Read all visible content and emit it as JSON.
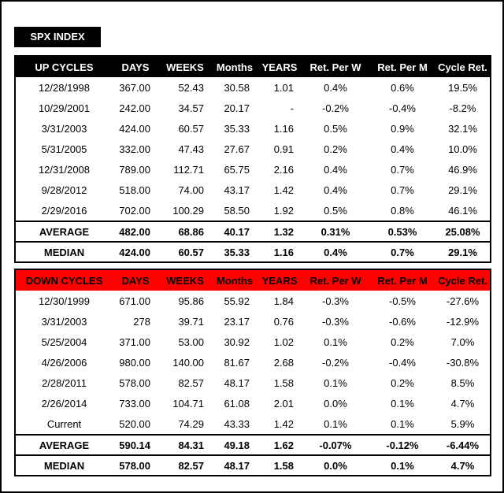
{
  "title": "SPX INDEX",
  "up": {
    "headers": [
      "UP CYCLES",
      "DAYS",
      "WEEKS",
      "Months",
      "YEARS",
      "Ret. Per W",
      "Ret. Per M",
      "Cycle Ret."
    ],
    "rows": [
      [
        "12/28/1998",
        "367.00",
        "52.43",
        "30.58",
        "1.01",
        "0.4%",
        "0.6%",
        "19.5%"
      ],
      [
        "10/29/2001",
        "242.00",
        "34.57",
        "20.17",
        "-",
        "-0.2%",
        "-0.4%",
        "-8.2%"
      ],
      [
        "3/31/2003",
        "424.00",
        "60.57",
        "35.33",
        "1.16",
        "0.5%",
        "0.9%",
        "32.1%"
      ],
      [
        "5/31/2005",
        "332.00",
        "47.43",
        "27.67",
        "0.91",
        "0.2%",
        "0.4%",
        "10.0%"
      ],
      [
        "12/31/2008",
        "789.00",
        "112.71",
        "65.75",
        "2.16",
        "0.4%",
        "0.7%",
        "46.9%"
      ],
      [
        "9/28/2012",
        "518.00",
        "74.00",
        "43.17",
        "1.42",
        "0.4%",
        "0.7%",
        "29.1%"
      ],
      [
        "2/29/2016",
        "702.00",
        "100.29",
        "58.50",
        "1.92",
        "0.5%",
        "0.8%",
        "46.1%"
      ]
    ],
    "average": [
      "AVERAGE",
      "482.00",
      "68.86",
      "40.17",
      "1.32",
      "0.31%",
      "0.53%",
      "25.08%"
    ],
    "median": [
      "MEDIAN",
      "424.00",
      "60.57",
      "35.33",
      "1.16",
      "0.4%",
      "0.7%",
      "29.1%"
    ]
  },
  "down": {
    "headers": [
      "DOWN CYCLES",
      "DAYS",
      "WEEKS",
      "Months",
      "YEARS",
      "Ret. Per W",
      "Ret. Per M",
      "Cycle Ret."
    ],
    "rows": [
      [
        "12/30/1999",
        "671.00",
        "95.86",
        "55.92",
        "1.84",
        "-0.3%",
        "-0.5%",
        "-27.6%"
      ],
      [
        "3/31/2003",
        "278",
        "39.71",
        "23.17",
        "0.76",
        "-0.3%",
        "-0.6%",
        "-12.9%"
      ],
      [
        "5/25/2004",
        "371.00",
        "53.00",
        "30.92",
        "1.02",
        "0.1%",
        "0.2%",
        "7.0%"
      ],
      [
        "4/26/2006",
        "980.00",
        "140.00",
        "81.67",
        "2.68",
        "-0.2%",
        "-0.4%",
        "-30.8%"
      ],
      [
        "2/28/2011",
        "578.00",
        "82.57",
        "48.17",
        "1.58",
        "0.1%",
        "0.2%",
        "8.5%"
      ],
      [
        "2/26/2014",
        "733.00",
        "104.71",
        "61.08",
        "2.01",
        "0.0%",
        "0.1%",
        "4.7%"
      ],
      [
        "Current",
        "520.00",
        "74.29",
        "43.33",
        "1.42",
        "0.1%",
        "0.1%",
        "5.9%"
      ]
    ],
    "average": [
      "AVERAGE",
      "590.14",
      "84.31",
      "49.18",
      "1.62",
      "-0.07%",
      "-0.12%",
      "-6.44%"
    ],
    "median": [
      "MEDIAN",
      "578.00",
      "82.57",
      "48.17",
      "1.58",
      "0.0%",
      "0.1%",
      "4.7%"
    ]
  },
  "colors": {
    "up_header_bg": "#000000",
    "down_header_bg": "#ff0000"
  }
}
